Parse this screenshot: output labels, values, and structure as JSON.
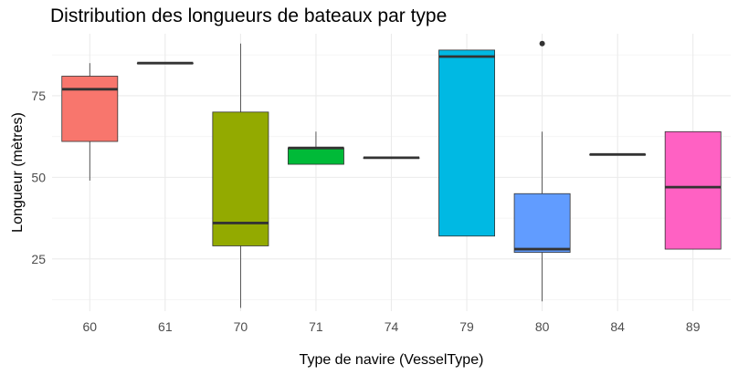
{
  "chart_data": {
    "type": "boxplot",
    "title": "Distribution des longueurs de bateaux par type",
    "xlabel": "Type de navire (VesselType)",
    "ylabel": "Longueur (mètres)",
    "ylim": [
      9,
      94
    ],
    "yticks": [
      25,
      50,
      75
    ],
    "grid": true,
    "categories": [
      "60",
      "61",
      "70",
      "71",
      "74",
      "79",
      "80",
      "84",
      "89"
    ],
    "boxes": [
      {
        "category": "60",
        "fill": "#F8766D",
        "whisker_low": 49,
        "q1": 61,
        "median": 77,
        "q3": 81,
        "whisker_high": 85,
        "outliers": []
      },
      {
        "category": "61",
        "fill": "#D39200",
        "whisker_low": 85,
        "q1": 85,
        "median": 85,
        "q3": 85,
        "whisker_high": 85,
        "outliers": []
      },
      {
        "category": "70",
        "fill": "#93AA00",
        "whisker_low": 10,
        "q1": 29,
        "median": 36,
        "q3": 70,
        "whisker_high": 91,
        "outliers": []
      },
      {
        "category": "71",
        "fill": "#00BA38",
        "whisker_low": 54,
        "q1": 54,
        "median": 59,
        "q3": 59,
        "whisker_high": 64,
        "outliers": []
      },
      {
        "category": "74",
        "fill": "#00C19F",
        "whisker_low": 56,
        "q1": 56,
        "median": 56,
        "q3": 56,
        "whisker_high": 56,
        "outliers": []
      },
      {
        "category": "79",
        "fill": "#00B9E3",
        "whisker_low": 32,
        "q1": 32,
        "median": 87,
        "q3": 89,
        "whisker_high": 89,
        "outliers": []
      },
      {
        "category": "80",
        "fill": "#619CFF",
        "whisker_low": 12,
        "q1": 27,
        "median": 28,
        "q3": 45,
        "whisker_high": 64,
        "outliers": [
          91
        ]
      },
      {
        "category": "84",
        "fill": "#DB72FB",
        "whisker_low": 57,
        "q1": 57,
        "median": 57,
        "q3": 57,
        "whisker_high": 57,
        "outliers": []
      },
      {
        "category": "89",
        "fill": "#FF61C3",
        "whisker_low": 28,
        "q1": 28,
        "median": 47,
        "q3": 64,
        "whisker_high": 64,
        "outliers": []
      }
    ],
    "colors": {
      "grid_major": "#EBEBEB",
      "grid_minor": "#F5F5F5",
      "box_stroke": "#333333",
      "median": "#333333"
    }
  }
}
